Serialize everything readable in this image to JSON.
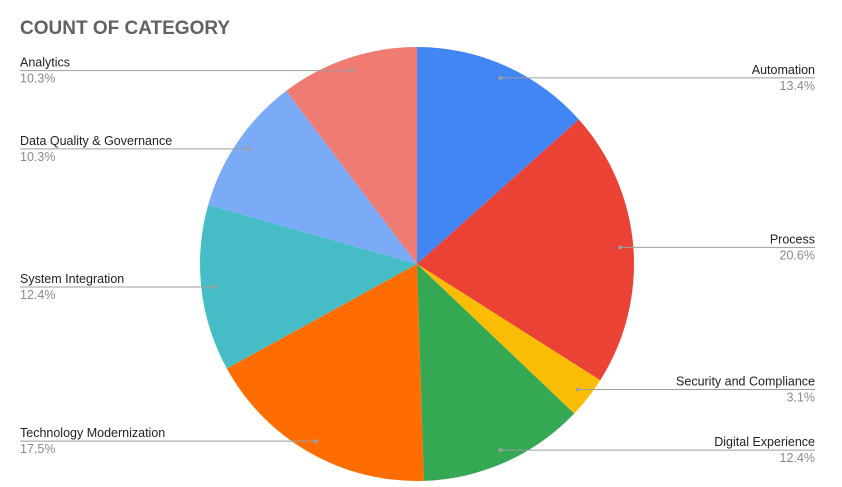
{
  "chart_data": {
    "type": "pie",
    "title": "COUNT OF CATEGORY",
    "slices": [
      {
        "label": "Automation",
        "value": 13.4,
        "value_label": "13.4%",
        "color": "#4285f4"
      },
      {
        "label": "Process",
        "value": 20.6,
        "value_label": "20.6%",
        "color": "#ea4335"
      },
      {
        "label": "Security and Compliance",
        "value": 3.1,
        "value_label": "3.1%",
        "color": "#fbbc04"
      },
      {
        "label": "Digital Experience",
        "value": 12.4,
        "value_label": "12.4%",
        "color": "#34a853"
      },
      {
        "label": "Technology Modernization",
        "value": 17.5,
        "value_label": "17.5%",
        "color": "#ff6d01"
      },
      {
        "label": "System Integration",
        "value": 12.4,
        "value_label": "12.4%",
        "color": "#46bdc6"
      },
      {
        "label": "Data Quality & Governance",
        "value": 10.3,
        "value_label": "10.3%",
        "color": "#7baaf7"
      },
      {
        "label": "Analytics",
        "value": 10.3,
        "value_label": "10.3%",
        "color": "#f07b72"
      }
    ],
    "start_angle": "12 o'clock",
    "direction": "clockwise",
    "legend": "none",
    "slice_labels": "outside-with-leader-lines"
  }
}
